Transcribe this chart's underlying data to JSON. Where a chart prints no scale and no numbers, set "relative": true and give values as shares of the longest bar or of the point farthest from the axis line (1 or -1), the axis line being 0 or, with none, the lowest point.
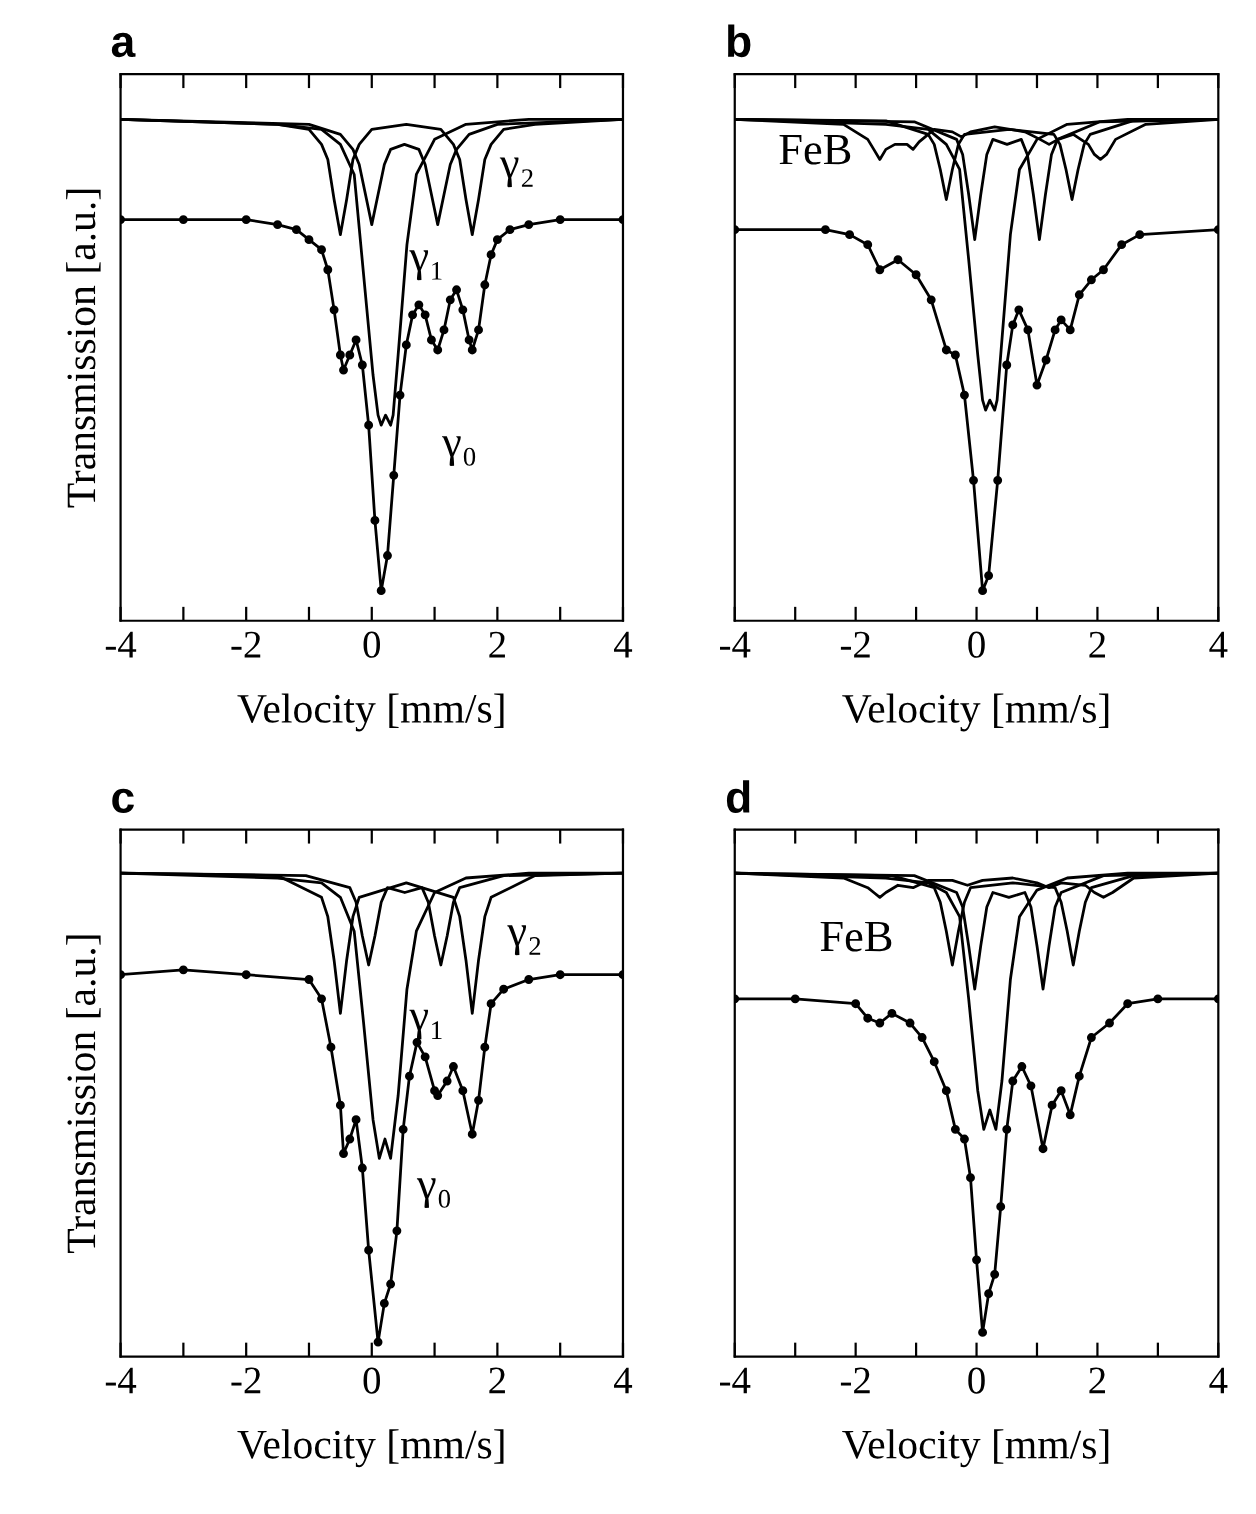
{
  "chart_data": [
    {
      "type": "line",
      "title": "a",
      "xlabel": "Velocity [mm/s]",
      "ylabel": "Transmission [a.u.]",
      "relative": true,
      "tick_labels": "x",
      "xlim": [
        -4,
        4
      ],
      "xticks": [
        -4,
        {
          "value": -3,
          "label": null
        },
        -2,
        {
          "value": -1,
          "label": null
        },
        0,
        {
          "value": 1,
          "label": null
        },
        2,
        {
          "value": 3,
          "label": null
        },
        4
      ],
      "annotations": [
        "γ₂",
        "γ₁",
        "γ₀"
      ],
      "series": [
        {
          "color": "#000000",
          "marker": "none",
          "x": [
            -4,
            -1.5,
            -1,
            -0.8,
            -0.7,
            -0.6,
            -0.5,
            -0.4,
            -0.3,
            -0.2,
            0,
            0.55,
            1.1,
            1.3,
            1.4,
            1.5,
            1.6,
            1.7,
            1.8,
            1.9,
            2.1,
            2.6,
            4
          ],
          "values": [
            1.0,
            0.99,
            0.98,
            0.95,
            0.92,
            0.84,
            0.77,
            0.84,
            0.92,
            0.95,
            0.98,
            0.99,
            0.98,
            0.95,
            0.92,
            0.84,
            0.77,
            0.84,
            0.92,
            0.95,
            0.98,
            0.99,
            1.0
          ]
        },
        {
          "color": "#000000",
          "marker": "none",
          "x": [
            -4,
            -1,
            -0.5,
            -0.3,
            -0.2,
            -0.1,
            0,
            0.1,
            0.2,
            0.3,
            0.52,
            0.75,
            0.85,
            0.95,
            1.05,
            1.15,
            1.25,
            1.35,
            1.55,
            2,
            4
          ],
          "values": [
            1.0,
            0.99,
            0.97,
            0.94,
            0.91,
            0.85,
            0.79,
            0.85,
            0.91,
            0.94,
            0.95,
            0.94,
            0.91,
            0.85,
            0.79,
            0.85,
            0.91,
            0.94,
            0.97,
            0.99,
            1.0
          ]
        },
        {
          "color": "#000000",
          "marker": "none",
          "x": [
            -4,
            -1.5,
            -0.8,
            -0.5,
            -0.28,
            -0.13,
            0.02,
            0.1,
            0.15,
            0.22,
            0.3,
            0.34,
            0.42,
            0.56,
            0.71,
            1.0,
            1.5,
            2.5,
            4
          ],
          "values": [
            1.0,
            0.99,
            0.98,
            0.95,
            0.89,
            0.69,
            0.49,
            0.41,
            0.39,
            0.41,
            0.39,
            0.41,
            0.53,
            0.75,
            0.89,
            0.96,
            0.99,
            1.0,
            1.0
          ]
        },
        {
          "color": "#000000",
          "marker": "circle",
          "x": [
            -4,
            -3,
            -2,
            -1.5,
            -1.2,
            -1,
            -0.8,
            -0.7,
            -0.6,
            -0.5,
            -0.45,
            -0.35,
            -0.25,
            -0.15,
            -0.05,
            0.05,
            0.15,
            0.25,
            0.35,
            0.45,
            0.55,
            0.65,
            0.75,
            0.85,
            0.95,
            1.05,
            1.15,
            1.25,
            1.35,
            1.45,
            1.55,
            1.6,
            1.7,
            1.8,
            1.9,
            2.0,
            2.2,
            2.5,
            3,
            4
          ],
          "values": [
            0.8,
            0.8,
            0.8,
            0.79,
            0.78,
            0.76,
            0.74,
            0.7,
            0.62,
            0.53,
            0.5,
            0.53,
            0.56,
            0.51,
            0.39,
            0.2,
            0.06,
            0.13,
            0.29,
            0.45,
            0.55,
            0.61,
            0.63,
            0.61,
            0.56,
            0.54,
            0.58,
            0.64,
            0.66,
            0.62,
            0.56,
            0.54,
            0.58,
            0.67,
            0.73,
            0.76,
            0.78,
            0.79,
            0.8,
            0.8
          ]
        }
      ]
    },
    {
      "type": "line",
      "title": "b",
      "xlabel": "Velocity [mm/s]",
      "relative": true,
      "tick_labels": "x",
      "xlim": [
        -4,
        4
      ],
      "xticks": [
        -4,
        {
          "value": -3,
          "label": null
        },
        -2,
        {
          "value": -1,
          "label": null
        },
        0,
        {
          "value": 1,
          "label": null
        },
        2,
        {
          "value": 3,
          "label": null
        },
        4
      ],
      "annotations": [
        "FeB"
      ],
      "series": [
        {
          "color": "#000000",
          "marker": "none",
          "x": [
            -4,
            -2.2,
            -1.8,
            -1.7,
            -1.6,
            -1.5,
            -1.35,
            -1.15,
            -1.05,
            -0.95,
            -0.7,
            -0.4,
            -0.25,
            -0.1,
            0.3,
            0.8,
            1.05,
            1.2,
            1.35,
            1.6,
            1.85,
            1.95,
            2.05,
            2.15,
            2.3,
            2.8,
            4
          ],
          "values": [
            1,
            0.99,
            0.96,
            0.94,
            0.92,
            0.94,
            0.95,
            0.95,
            0.94,
            0.955,
            0.98,
            0.975,
            0.965,
            0.975,
            0.985,
            0.975,
            0.96,
            0.95,
            0.96,
            0.97,
            0.95,
            0.93,
            0.92,
            0.93,
            0.96,
            0.99,
            1
          ]
        },
        {
          "color": "#000000",
          "marker": "none",
          "x": [
            -4,
            -1.5,
            -0.8,
            -0.7,
            -0.6,
            -0.5,
            -0.4,
            -0.3,
            -0.2,
            0.54,
            1.28,
            1.38,
            1.48,
            1.58,
            1.68,
            1.78,
            1.88,
            2.58,
            4
          ],
          "values": [
            1,
            0.997,
            0.97,
            0.95,
            0.9,
            0.84,
            0.9,
            0.95,
            0.97,
            0.98,
            0.97,
            0.95,
            0.9,
            0.84,
            0.9,
            0.95,
            0.97,
            0.997,
            1
          ]
        },
        {
          "color": "#000000",
          "marker": "none",
          "x": [
            -4,
            -1.03,
            -0.33,
            -0.23,
            -0.13,
            -0.03,
            0.07,
            0.17,
            0.27,
            0.505,
            0.74,
            0.84,
            0.94,
            1.04,
            1.14,
            1.24,
            1.34,
            2.04,
            4
          ],
          "values": [
            1,
            0.995,
            0.96,
            0.93,
            0.85,
            0.76,
            0.85,
            0.93,
            0.96,
            0.95,
            0.96,
            0.93,
            0.85,
            0.76,
            0.85,
            0.93,
            0.96,
            0.995,
            1
          ]
        },
        {
          "color": "#000000",
          "marker": "none",
          "x": [
            -4,
            -1.5,
            -0.8,
            -0.5,
            -0.28,
            -0.13,
            0.02,
            0.1,
            0.15,
            0.22,
            0.3,
            0.34,
            0.42,
            0.56,
            0.71,
            1.0,
            1.5,
            2.5,
            4
          ],
          "values": [
            1.0,
            0.99,
            0.98,
            0.95,
            0.9,
            0.72,
            0.53,
            0.44,
            0.42,
            0.44,
            0.42,
            0.44,
            0.56,
            0.77,
            0.9,
            0.96,
            0.99,
            1.0,
            1.0
          ]
        },
        {
          "color": "#000000",
          "marker": "circle",
          "x": [
            -4,
            -2.5,
            -2.1,
            -1.8,
            -1.6,
            -1.3,
            -1.0,
            -0.75,
            -0.5,
            -0.35,
            -0.2,
            -0.05,
            0.1,
            0.2,
            0.35,
            0.5,
            0.6,
            0.7,
            0.85,
            1.0,
            1.15,
            1.3,
            1.4,
            1.55,
            1.7,
            1.9,
            2.1,
            2.4,
            2.7,
            4
          ],
          "values": [
            0.78,
            0.78,
            0.77,
            0.75,
            0.7,
            0.72,
            0.69,
            0.64,
            0.54,
            0.53,
            0.45,
            0.28,
            0.06,
            0.09,
            0.28,
            0.51,
            0.59,
            0.62,
            0.58,
            0.47,
            0.52,
            0.58,
            0.6,
            0.58,
            0.65,
            0.68,
            0.7,
            0.75,
            0.77,
            0.78
          ]
        }
      ]
    },
    {
      "type": "line",
      "title": "c",
      "xlabel": "Velocity [mm/s]",
      "ylabel": "Transmission [a.u.]",
      "relative": true,
      "tick_labels": "x",
      "xlim": [
        -4,
        4
      ],
      "xticks": [
        -4,
        {
          "value": -3,
          "label": null
        },
        -2,
        {
          "value": -1,
          "label": null
        },
        0,
        {
          "value": 1,
          "label": null
        },
        2,
        {
          "value": 3,
          "label": null
        },
        4
      ],
      "annotations": [
        "γ₂",
        "γ₁",
        "γ₀"
      ],
      "series": [
        {
          "color": "#000000",
          "marker": "none",
          "x": [
            -4,
            -1.5,
            -0.8,
            -0.7,
            -0.6,
            -0.5,
            -0.4,
            -0.3,
            -0.2,
            0.55,
            1.3,
            1.4,
            1.5,
            1.6,
            1.7,
            1.8,
            1.9,
            2.6,
            4
          ],
          "values": [
            1,
            0.995,
            0.95,
            0.91,
            0.82,
            0.71,
            0.82,
            0.91,
            0.95,
            0.98,
            0.95,
            0.91,
            0.82,
            0.71,
            0.82,
            0.91,
            0.95,
            0.995,
            1
          ]
        },
        {
          "color": "#000000",
          "marker": "none",
          "x": [
            -4,
            -1.05,
            -0.35,
            -0.25,
            -0.15,
            -0.05,
            0.05,
            0.15,
            0.25,
            0.525,
            0.8,
            0.9,
            1.0,
            1.1,
            1.2,
            1.3,
            1.4,
            2.1,
            4
          ],
          "values": [
            1,
            0.995,
            0.97,
            0.94,
            0.87,
            0.81,
            0.87,
            0.94,
            0.97,
            0.96,
            0.97,
            0.94,
            0.87,
            0.81,
            0.87,
            0.94,
            0.97,
            0.995,
            1
          ]
        },
        {
          "color": "#000000",
          "marker": "none",
          "x": [
            -4,
            -1.5,
            -0.8,
            -0.5,
            -0.28,
            -0.13,
            0.02,
            0.12,
            0.21,
            0.3,
            0.42,
            0.56,
            0.71,
            1.0,
            1.5,
            2.5,
            4
          ],
          "values": [
            1,
            0.99,
            0.98,
            0.95,
            0.88,
            0.69,
            0.49,
            0.41,
            0.45,
            0.41,
            0.54,
            0.76,
            0.88,
            0.96,
            0.99,
            1,
            1
          ]
        },
        {
          "color": "#000000",
          "marker": "circle",
          "x": [
            -4,
            -3,
            -2,
            -1,
            -0.8,
            -0.65,
            -0.5,
            -0.45,
            -0.35,
            -0.25,
            -0.15,
            -0.05,
            0.1,
            0.2,
            0.3,
            0.4,
            0.5,
            0.6,
            0.72,
            0.85,
            1.0,
            1.05,
            1.2,
            1.3,
            1.45,
            1.6,
            1.7,
            1.8,
            1.9,
            2.1,
            2.5,
            3,
            4
          ],
          "values": [
            0.79,
            0.8,
            0.79,
            0.78,
            0.74,
            0.64,
            0.52,
            0.42,
            0.45,
            0.49,
            0.39,
            0.22,
            0.03,
            0.11,
            0.15,
            0.26,
            0.47,
            0.58,
            0.65,
            0.62,
            0.55,
            0.54,
            0.57,
            0.6,
            0.55,
            0.46,
            0.53,
            0.64,
            0.73,
            0.76,
            0.78,
            0.79,
            0.79
          ]
        }
      ]
    },
    {
      "type": "line",
      "title": "d",
      "xlabel": "Velocity [mm/s]",
      "relative": true,
      "tick_labels": "x",
      "xlim": [
        -4,
        4
      ],
      "xticks": [
        -4,
        {
          "value": -3,
          "label": null
        },
        -2,
        {
          "value": -1,
          "label": null
        },
        0,
        {
          "value": 1,
          "label": null
        },
        2,
        {
          "value": 3,
          "label": null
        },
        4
      ],
      "annotations": [
        "FeB"
      ],
      "series": [
        {
          "color": "#000000",
          "marker": "none",
          "x": [
            -4,
            -2.2,
            -1.8,
            -1.7,
            -1.6,
            -1.5,
            -1.3,
            -1.05,
            -0.8,
            -0.4,
            -0.15,
            0.1,
            0.6,
            1.0,
            1.2,
            1.4,
            1.8,
            1.95,
            2.1,
            2.25,
            2.6,
            4
          ],
          "values": [
            1,
            0.99,
            0.97,
            0.96,
            0.95,
            0.96,
            0.975,
            0.97,
            0.985,
            0.985,
            0.975,
            0.985,
            0.99,
            0.98,
            0.97,
            0.98,
            0.975,
            0.96,
            0.95,
            0.96,
            0.99,
            1
          ]
        },
        {
          "color": "#000000",
          "marker": "none",
          "x": [
            -4,
            -1.4,
            -0.7,
            -0.6,
            -0.5,
            -0.4,
            -0.3,
            -0.2,
            -0.1,
            0.6,
            1.3,
            1.4,
            1.5,
            1.6,
            1.7,
            1.8,
            1.9,
            2.6,
            4
          ],
          "values": [
            1,
            0.995,
            0.97,
            0.94,
            0.88,
            0.81,
            0.88,
            0.94,
            0.97,
            0.98,
            0.97,
            0.94,
            0.88,
            0.81,
            0.88,
            0.94,
            0.97,
            0.995,
            1
          ]
        },
        {
          "color": "#000000",
          "marker": "none",
          "x": [
            -4,
            -1.03,
            -0.33,
            -0.23,
            -0.13,
            -0.03,
            0.07,
            0.17,
            0.27,
            0.535,
            0.8,
            0.9,
            1.0,
            1.1,
            1.2,
            1.3,
            1.4,
            2.1,
            4
          ],
          "values": [
            1,
            0.995,
            0.96,
            0.93,
            0.85,
            0.76,
            0.85,
            0.93,
            0.96,
            0.95,
            0.96,
            0.93,
            0.85,
            0.76,
            0.85,
            0.93,
            0.96,
            0.995,
            1
          ]
        },
        {
          "color": "#000000",
          "marker": "none",
          "x": [
            -4,
            -1.5,
            -0.8,
            -0.5,
            -0.28,
            -0.13,
            0.02,
            0.12,
            0.22,
            0.32,
            0.42,
            0.56,
            0.71,
            1.0,
            1.5,
            2.5,
            4
          ],
          "values": [
            1,
            0.99,
            0.98,
            0.96,
            0.91,
            0.74,
            0.55,
            0.47,
            0.51,
            0.47,
            0.57,
            0.78,
            0.91,
            0.965,
            0.99,
            1,
            1
          ]
        },
        {
          "color": "#000000",
          "marker": "circle",
          "x": [
            -4,
            -3,
            -2,
            -1.8,
            -1.6,
            -1.4,
            -1.1,
            -0.9,
            -0.7,
            -0.5,
            -0.35,
            -0.2,
            -0.1,
            0.0,
            0.1,
            0.2,
            0.3,
            0.4,
            0.5,
            0.6,
            0.75,
            0.9,
            1.1,
            1.25,
            1.4,
            1.55,
            1.7,
            1.9,
            2.2,
            2.5,
            3,
            4
          ],
          "values": [
            0.74,
            0.74,
            0.73,
            0.7,
            0.69,
            0.71,
            0.69,
            0.66,
            0.61,
            0.55,
            0.47,
            0.45,
            0.37,
            0.2,
            0.05,
            0.13,
            0.17,
            0.31,
            0.47,
            0.57,
            0.6,
            0.56,
            0.43,
            0.52,
            0.55,
            0.5,
            0.58,
            0.66,
            0.69,
            0.73,
            0.74,
            0.74
          ]
        }
      ]
    }
  ]
}
